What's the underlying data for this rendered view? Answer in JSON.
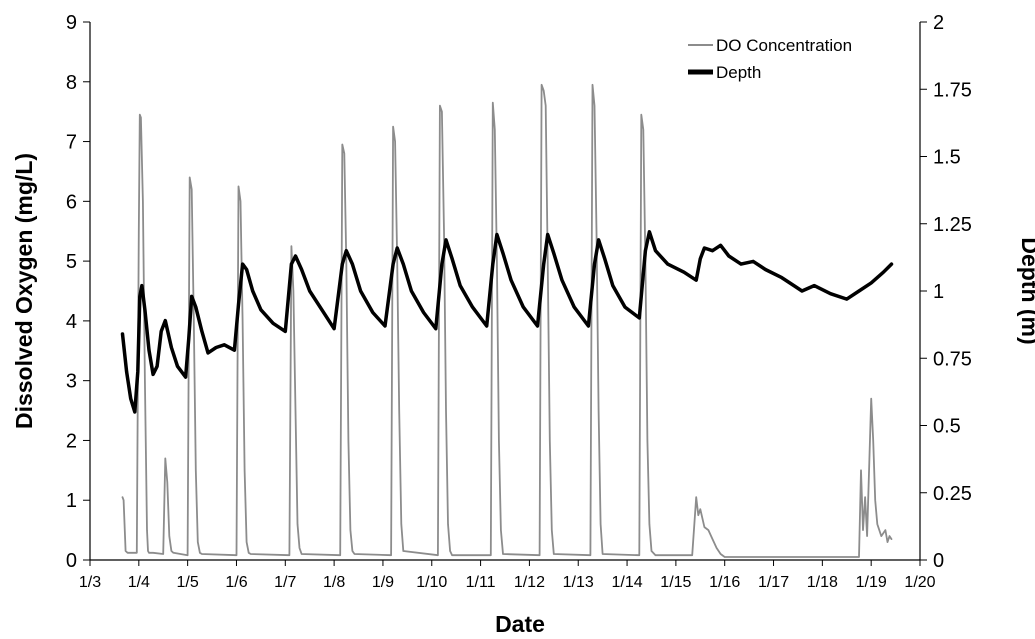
{
  "chart_data": {
    "type": "line",
    "xlabel": "Date",
    "ylabel": "Dissolved Oxygen (mg/L)",
    "y2label": "Depth (m)",
    "xlim": [
      "2000-01-03",
      "2000-01-20"
    ],
    "x_ticks": [
      "1/3",
      "1/4",
      "1/5",
      "1/6",
      "1/7",
      "1/8",
      "1/9",
      "1/10",
      "1/11",
      "1/12",
      "1/13",
      "1/14",
      "1/15",
      "1/16",
      "1/17",
      "1/18",
      "1/19",
      "1/20"
    ],
    "ylim": [
      0,
      9
    ],
    "y_ticks": [
      "0",
      "1",
      "2",
      "3",
      "4",
      "5",
      "6",
      "7",
      "8",
      "9"
    ],
    "y2lim": [
      0,
      2
    ],
    "y2_ticks": [
      "0",
      "0.25",
      "0.5",
      "0.75",
      "1",
      "1.25",
      "1.5",
      "1.75",
      "2"
    ],
    "grid": false,
    "legend_position": "top-right",
    "series": [
      {
        "name": "DO Concentration",
        "axis": "left",
        "color": "#8c8c8c",
        "x": [
          "2000-01-03 16:00",
          "2000-01-03 16:30",
          "2000-01-03 17:30",
          "2000-01-03 18:30",
          "2000-01-03 23:00",
          "2000-01-04 00:00",
          "2000-01-04 00:30",
          "2000-01-04 01:00",
          "2000-01-04 02:00",
          "2000-01-04 03:00",
          "2000-01-04 04:00",
          "2000-01-04 04:30",
          "2000-01-04 05:00",
          "2000-01-04 06:00",
          "2000-01-04 07:00",
          "2000-01-04 12:00",
          "2000-01-04 13:00",
          "2000-01-04 14:00",
          "2000-01-04 15:00",
          "2000-01-04 16:00",
          "2000-01-04 17:00",
          "2000-01-05 00:00",
          "2000-01-05 01:00",
          "2000-01-05 02:00",
          "2000-01-05 03:00",
          "2000-01-05 04:00",
          "2000-01-05 05:00",
          "2000-01-05 06:00",
          "2000-01-05 07:00",
          "2000-01-06 00:00",
          "2000-01-06 01:00",
          "2000-01-06 02:00",
          "2000-01-06 03:00",
          "2000-01-06 04:00",
          "2000-01-06 05:00",
          "2000-01-06 06:00",
          "2000-01-06 07:00",
          "2000-01-07 02:00",
          "2000-01-07 03:00",
          "2000-01-07 04:00",
          "2000-01-07 05:00",
          "2000-01-07 06:00",
          "2000-01-07 07:00",
          "2000-01-07 08:00",
          "2000-01-08 03:00",
          "2000-01-08 04:00",
          "2000-01-08 05:00",
          "2000-01-08 06:00",
          "2000-01-08 07:00",
          "2000-01-08 08:00",
          "2000-01-08 09:00",
          "2000-01-08 10:00",
          "2000-01-09 04:00",
          "2000-01-09 05:00",
          "2000-01-09 06:00",
          "2000-01-09 07:00",
          "2000-01-09 08:00",
          "2000-01-09 09:00",
          "2000-01-09 10:00",
          "2000-01-10 03:00",
          "2000-01-10 04:00",
          "2000-01-10 05:00",
          "2000-01-10 06:00",
          "2000-01-10 07:00",
          "2000-01-10 08:00",
          "2000-01-10 09:00",
          "2000-01-10 10:00",
          "2000-01-11 05:00",
          "2000-01-11 06:00",
          "2000-01-11 07:00",
          "2000-01-11 08:00",
          "2000-01-11 09:00",
          "2000-01-11 10:00",
          "2000-01-11 11:00",
          "2000-01-12 05:00",
          "2000-01-12 06:00",
          "2000-01-12 07:00",
          "2000-01-12 08:00",
          "2000-01-12 09:00",
          "2000-01-12 10:00",
          "2000-01-12 11:00",
          "2000-01-12 12:00",
          "2000-01-13 06:00",
          "2000-01-13 07:00",
          "2000-01-13 08:00",
          "2000-01-13 09:00",
          "2000-01-13 10:00",
          "2000-01-13 11:00",
          "2000-01-13 12:00",
          "2000-01-14 06:00",
          "2000-01-14 07:00",
          "2000-01-14 08:00",
          "2000-01-14 09:00",
          "2000-01-14 10:00",
          "2000-01-14 11:00",
          "2000-01-14 12:00",
          "2000-01-14 14:00",
          "2000-01-15 08:00",
          "2000-01-15 10:00",
          "2000-01-15 11:00",
          "2000-01-15 12:00",
          "2000-01-15 14:00",
          "2000-01-15 16:00",
          "2000-01-15 18:00",
          "2000-01-15 20:00",
          "2000-01-15 22:00",
          "2000-01-16 00:00",
          "2000-01-16 12:00",
          "2000-01-17 00:00",
          "2000-01-17 12:00",
          "2000-01-18 00:00",
          "2000-01-18 12:00",
          "2000-01-18 18:00",
          "2000-01-18 19:00",
          "2000-01-18 20:00",
          "2000-01-18 21:00",
          "2000-01-18 22:00",
          "2000-01-19 00:00",
          "2000-01-19 01:00",
          "2000-01-19 02:00",
          "2000-01-19 03:00",
          "2000-01-19 05:00",
          "2000-01-19 07:00",
          "2000-01-19 08:00",
          "2000-01-19 09:00",
          "2000-01-19 10:00"
        ],
        "values": [
          1.05,
          1.0,
          0.15,
          0.12,
          0.12,
          5.5,
          7.45,
          7.4,
          6.0,
          3.0,
          0.5,
          0.15,
          0.12,
          0.12,
          0.12,
          0.1,
          1.7,
          1.3,
          0.4,
          0.15,
          0.12,
          0.08,
          6.4,
          6.2,
          4.0,
          1.5,
          0.3,
          0.12,
          0.1,
          0.08,
          6.25,
          6.0,
          4.0,
          1.5,
          0.3,
          0.12,
          0.1,
          0.08,
          5.25,
          4.5,
          2.5,
          0.6,
          0.2,
          0.1,
          0.08,
          6.95,
          6.8,
          5.0,
          2.0,
          0.5,
          0.15,
          0.1,
          0.08,
          7.25,
          7.0,
          5.0,
          2.5,
          0.6,
          0.15,
          0.08,
          7.6,
          7.5,
          5.5,
          2.5,
          0.6,
          0.15,
          0.08,
          0.08,
          7.65,
          7.2,
          5.0,
          2.0,
          0.5,
          0.1,
          0.08,
          7.95,
          7.85,
          7.6,
          5.0,
          2.0,
          0.5,
          0.1,
          0.08,
          7.95,
          7.6,
          5.5,
          2.5,
          0.6,
          0.1,
          0.08,
          7.45,
          7.2,
          5.0,
          2.0,
          0.6,
          0.15,
          0.08,
          0.08,
          1.05,
          0.75,
          0.85,
          0.55,
          0.5,
          0.35,
          0.2,
          0.1,
          0.05,
          0.05,
          0.05,
          0.05,
          0.05,
          0.05,
          0.05,
          1.5,
          0.5,
          1.05,
          0.4,
          2.7,
          2.0,
          1.0,
          0.6,
          0.4,
          0.5,
          0.3,
          0.4,
          0.35
        ]
      },
      {
        "name": "Depth",
        "axis": "right",
        "color": "#000000",
        "x": [
          "2000-01-03 16:00",
          "2000-01-03 18:00",
          "2000-01-03 20:00",
          "2000-01-03 22:00",
          "2000-01-03 23:30",
          "2000-01-04 00:30",
          "2000-01-04 01:30",
          "2000-01-04 03:00",
          "2000-01-04 05:00",
          "2000-01-04 07:00",
          "2000-01-04 09:00",
          "2000-01-04 11:00",
          "2000-01-04 13:00",
          "2000-01-04 16:00",
          "2000-01-04 19:00",
          "2000-01-04 23:00",
          "2000-01-05 00:30",
          "2000-01-05 02:00",
          "2000-01-05 04:00",
          "2000-01-05 07:00",
          "2000-01-05 10:00",
          "2000-01-05 14:00",
          "2000-01-05 18:00",
          "2000-01-05 23:00",
          "2000-01-06 01:00",
          "2000-01-06 03:00",
          "2000-01-06 05:00",
          "2000-01-06 08:00",
          "2000-01-06 12:00",
          "2000-01-06 18:00",
          "2000-01-07 00:00",
          "2000-01-07 03:00",
          "2000-01-07 05:00",
          "2000-01-07 08:00",
          "2000-01-07 12:00",
          "2000-01-07 18:00",
          "2000-01-08 00:00",
          "2000-01-08 04:00",
          "2000-01-08 06:00",
          "2000-01-08 09:00",
          "2000-01-08 13:00",
          "2000-01-08 19:00",
          "2000-01-09 01:00",
          "2000-01-09 05:00",
          "2000-01-09 07:00",
          "2000-01-09 10:00",
          "2000-01-09 14:00",
          "2000-01-09 20:00",
          "2000-01-10 02:00",
          "2000-01-10 05:00",
          "2000-01-10 07:00",
          "2000-01-10 10:00",
          "2000-01-10 14:00",
          "2000-01-10 20:00",
          "2000-01-11 03:00",
          "2000-01-11 06:00",
          "2000-01-11 08:00",
          "2000-01-11 11:00",
          "2000-01-11 15:00",
          "2000-01-11 21:00",
          "2000-01-12 04:00",
          "2000-01-12 07:00",
          "2000-01-12 09:00",
          "2000-01-12 12:00",
          "2000-01-12 16:00",
          "2000-01-12 22:00",
          "2000-01-13 05:00",
          "2000-01-13 08:00",
          "2000-01-13 10:00",
          "2000-01-13 13:00",
          "2000-01-13 17:00",
          "2000-01-13 23:00",
          "2000-01-14 06:00",
          "2000-01-14 09:00",
          "2000-01-14 11:00",
          "2000-01-14 14:00",
          "2000-01-14 20:00",
          "2000-01-15 04:00",
          "2000-01-15 10:00",
          "2000-01-15 12:00",
          "2000-01-15 14:00",
          "2000-01-15 18:00",
          "2000-01-15 22:00",
          "2000-01-16 02:00",
          "2000-01-16 08:00",
          "2000-01-16 14:00",
          "2000-01-16 20:00",
          "2000-01-17 04:00",
          "2000-01-17 10:00",
          "2000-01-17 14:00",
          "2000-01-17 20:00",
          "2000-01-18 04:00",
          "2000-01-18 12:00",
          "2000-01-18 18:00",
          "2000-01-19 00:00",
          "2000-01-19 06:00",
          "2000-01-19 10:00"
        ],
        "values": [
          0.84,
          0.7,
          0.6,
          0.55,
          0.7,
          0.98,
          1.02,
          0.93,
          0.78,
          0.69,
          0.72,
          0.85,
          0.89,
          0.79,
          0.72,
          0.68,
          0.82,
          0.98,
          0.94,
          0.85,
          0.77,
          0.79,
          0.8,
          0.78,
          0.95,
          1.1,
          1.08,
          1.0,
          0.93,
          0.88,
          0.85,
          1.1,
          1.13,
          1.08,
          1.0,
          0.93,
          0.86,
          1.1,
          1.15,
          1.1,
          1.0,
          0.92,
          0.87,
          1.1,
          1.16,
          1.1,
          1.0,
          0.92,
          0.86,
          1.1,
          1.19,
          1.12,
          1.02,
          0.94,
          0.87,
          1.1,
          1.21,
          1.14,
          1.04,
          0.94,
          0.87,
          1.1,
          1.21,
          1.14,
          1.04,
          0.94,
          0.87,
          1.1,
          1.19,
          1.12,
          1.02,
          0.94,
          0.9,
          1.15,
          1.22,
          1.15,
          1.1,
          1.07,
          1.04,
          1.12,
          1.16,
          1.15,
          1.17,
          1.13,
          1.1,
          1.11,
          1.08,
          1.05,
          1.02,
          1.0,
          1.02,
          0.99,
          0.97,
          1.0,
          1.03,
          1.07,
          1.1
        ]
      }
    ]
  }
}
